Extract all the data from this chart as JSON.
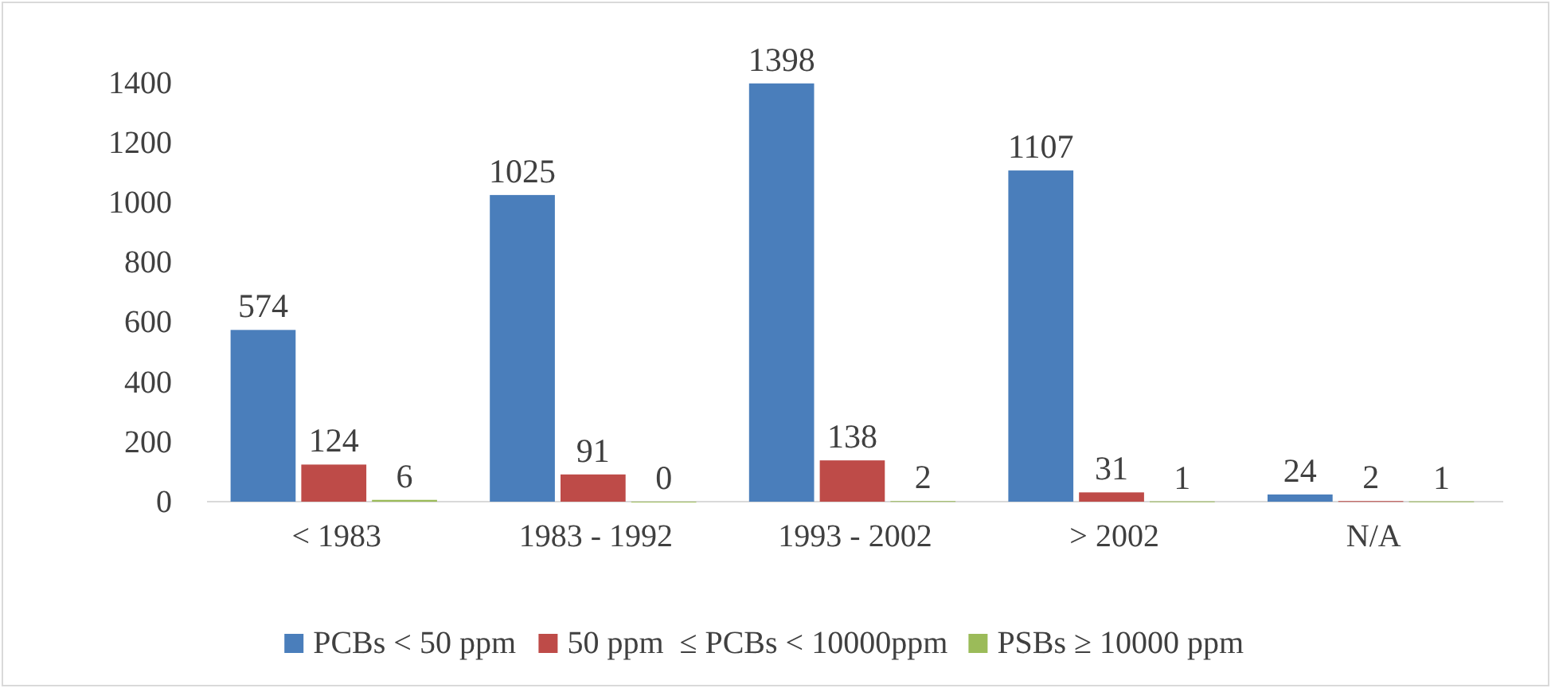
{
  "chart_data": {
    "type": "bar",
    "categories": [
      "< 1983",
      "1983 - 1992",
      "1993 - 2002",
      "> 2002",
      "N/A"
    ],
    "series": [
      {
        "name": "PCBs < 50 ppm",
        "color": "#4a7ebb",
        "values": [
          574,
          1025,
          1398,
          1107,
          24
        ]
      },
      {
        "name": "50 ppm  ≤ PCBs < 10000ppm",
        "color": "#be4b48",
        "values": [
          124,
          91,
          138,
          31,
          2
        ]
      },
      {
        "name": "PSBs ≥ 10000 ppm",
        "color": "#9bbb59",
        "values": [
          6,
          0,
          2,
          1,
          1
        ]
      }
    ],
    "ylim": [
      0,
      1400
    ],
    "yticks": [
      0,
      200,
      400,
      600,
      800,
      1000,
      1200,
      1400
    ],
    "grid": false,
    "legend": "bottom",
    "data_labels": true
  }
}
